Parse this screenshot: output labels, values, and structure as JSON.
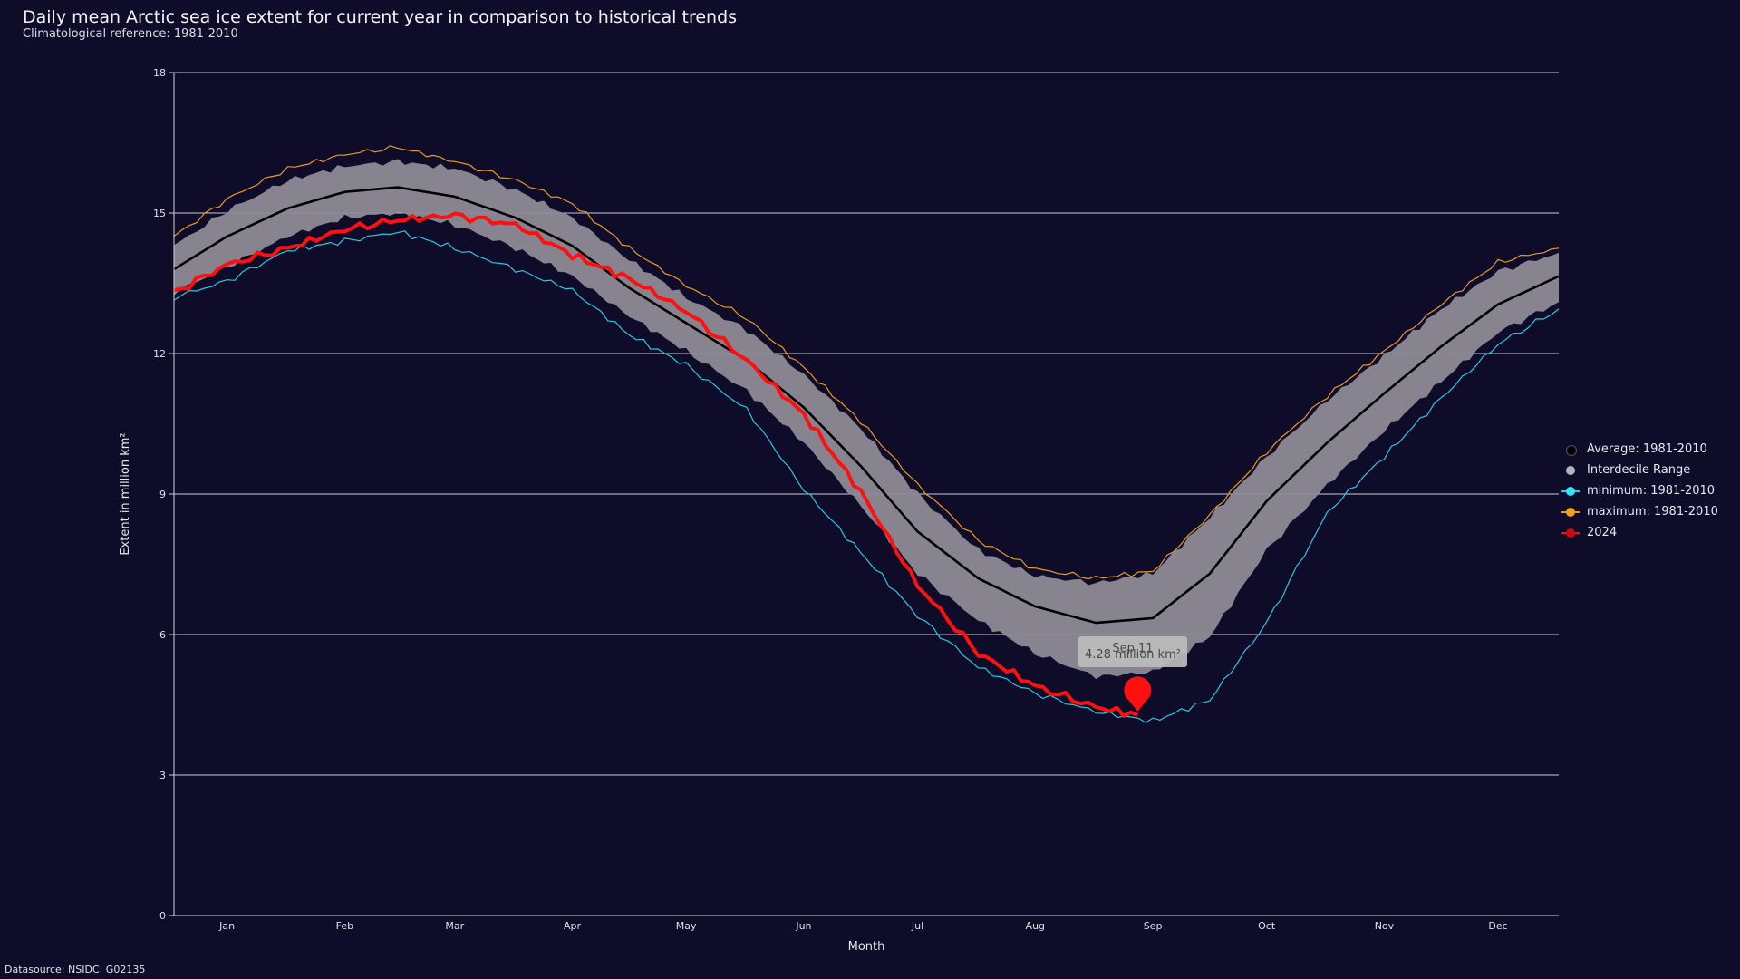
{
  "page": {
    "title": "Daily mean Arctic sea ice extent for current year in comparison to historical trends",
    "subtitle": "Climatological reference: 1981-2010",
    "source": "Datasource: NSIDC: G02135"
  },
  "colors": {
    "background": "#0f0c29",
    "average": "#000000",
    "interdecile": "#8e8b96",
    "minimum": "#2ec6e0",
    "maximum": "#e89a1e",
    "current": "#ff1010"
  },
  "legend": {
    "items": [
      {
        "label": "Average: 1981-2010",
        "key": "average"
      },
      {
        "label": "Interdecile Range",
        "key": "interdecile"
      },
      {
        "label": "minimum: 1981-2010",
        "key": "minimum"
      },
      {
        "label": "maximum: 1981-2010",
        "key": "maximum"
      },
      {
        "label": "2024",
        "key": "current"
      }
    ]
  },
  "tooltip": {
    "date": "Sep 11",
    "value": "4.28 million km²"
  },
  "chart_data": {
    "type": "line",
    "xlabel": "Month",
    "ylabel": "Extent in million km²",
    "ylim": [
      0,
      18
    ],
    "yticks": [
      0,
      3,
      6,
      9,
      12,
      15,
      18
    ],
    "xlim": [
      1,
      366
    ],
    "xticks": [
      {
        "label": "Jan",
        "day": 15
      },
      {
        "label": "Feb",
        "day": 46
      },
      {
        "label": "Mar",
        "day": 75
      },
      {
        "label": "Apr",
        "day": 106
      },
      {
        "label": "May",
        "day": 136
      },
      {
        "label": "Jun",
        "day": 167
      },
      {
        "label": "Jul",
        "day": 197
      },
      {
        "label": "Aug",
        "day": 228
      },
      {
        "label": "Sep",
        "day": 259
      },
      {
        "label": "Oct",
        "day": 289
      },
      {
        "label": "Nov",
        "day": 320
      },
      {
        "label": "Dec",
        "day": 350
      }
    ],
    "series": [
      {
        "name": "Average: 1981-2010",
        "key": "average",
        "x": [
          1,
          15,
          31,
          46,
          60,
          75,
          91,
          106,
          121,
          136,
          152,
          167,
          182,
          197,
          213,
          228,
          244,
          259,
          274,
          289,
          305,
          320,
          335,
          350,
          366
        ],
        "values": [
          13.8,
          14.5,
          15.1,
          15.45,
          15.55,
          15.35,
          14.9,
          14.3,
          13.4,
          12.65,
          11.85,
          10.85,
          9.6,
          8.2,
          7.2,
          6.6,
          6.25,
          6.35,
          7.3,
          8.85,
          10.1,
          11.15,
          12.15,
          13.05,
          13.65
        ]
      },
      {
        "name": "Interdecile upper",
        "key": "interdecile_upper",
        "x": [
          1,
          15,
          31,
          46,
          60,
          75,
          91,
          106,
          121,
          136,
          152,
          167,
          182,
          197,
          213,
          228,
          244,
          259,
          274,
          289,
          305,
          320,
          335,
          350,
          366
        ],
        "values": [
          14.3,
          15.05,
          15.7,
          16.0,
          16.1,
          15.95,
          15.5,
          14.9,
          14.0,
          13.2,
          12.5,
          11.55,
          10.4,
          9.0,
          7.8,
          7.25,
          7.1,
          7.3,
          8.5,
          9.8,
          11.0,
          11.95,
          12.95,
          13.75,
          14.15
        ]
      },
      {
        "name": "Interdecile lower",
        "key": "interdecile_lower",
        "x": [
          1,
          15,
          31,
          46,
          60,
          75,
          91,
          106,
          121,
          136,
          152,
          167,
          182,
          197,
          213,
          228,
          244,
          259,
          274,
          289,
          305,
          320,
          335,
          350,
          366
        ],
        "values": [
          13.3,
          13.85,
          14.5,
          14.9,
          15.0,
          14.75,
          14.25,
          13.65,
          12.8,
          12.05,
          11.2,
          10.1,
          8.75,
          7.3,
          6.3,
          5.6,
          5.1,
          5.2,
          5.95,
          7.8,
          9.2,
          10.35,
          11.4,
          12.45,
          13.1
        ]
      },
      {
        "name": "minimum: 1981-2010",
        "key": "minimum",
        "x": [
          1,
          15,
          31,
          46,
          60,
          75,
          91,
          106,
          121,
          136,
          152,
          167,
          182,
          197,
          213,
          228,
          244,
          259,
          274,
          289,
          305,
          320,
          335,
          350,
          366
        ],
        "values": [
          13.2,
          13.55,
          14.2,
          14.4,
          14.6,
          14.25,
          13.8,
          13.35,
          12.4,
          11.75,
          10.8,
          9.1,
          7.75,
          6.4,
          5.3,
          4.75,
          4.35,
          4.15,
          4.6,
          6.25,
          8.6,
          9.8,
          11.05,
          12.2,
          12.95
        ]
      },
      {
        "name": "maximum: 1981-2010",
        "key": "maximum",
        "x": [
          1,
          15,
          31,
          46,
          60,
          75,
          91,
          106,
          121,
          136,
          152,
          167,
          182,
          197,
          213,
          228,
          244,
          259,
          274,
          289,
          305,
          320,
          335,
          350,
          366
        ],
        "values": [
          14.5,
          15.3,
          15.95,
          16.25,
          16.4,
          16.1,
          15.7,
          15.2,
          14.25,
          13.45,
          12.75,
          11.7,
          10.55,
          9.2,
          8.0,
          7.4,
          7.2,
          7.35,
          8.55,
          9.9,
          11.1,
          12.05,
          13.05,
          13.95,
          14.25
        ]
      },
      {
        "name": "2024",
        "key": "current",
        "x": [
          1,
          15,
          31,
          46,
          60,
          75,
          91,
          106,
          121,
          136,
          152,
          167,
          182,
          197,
          213,
          228,
          244,
          255
        ],
        "values": [
          13.3,
          13.9,
          14.25,
          14.65,
          14.85,
          14.95,
          14.75,
          14.1,
          13.6,
          12.9,
          11.85,
          10.7,
          9.05,
          7.05,
          5.6,
          4.9,
          4.45,
          4.28
        ]
      }
    ],
    "highlight": {
      "day": 255,
      "value": 4.28
    }
  }
}
